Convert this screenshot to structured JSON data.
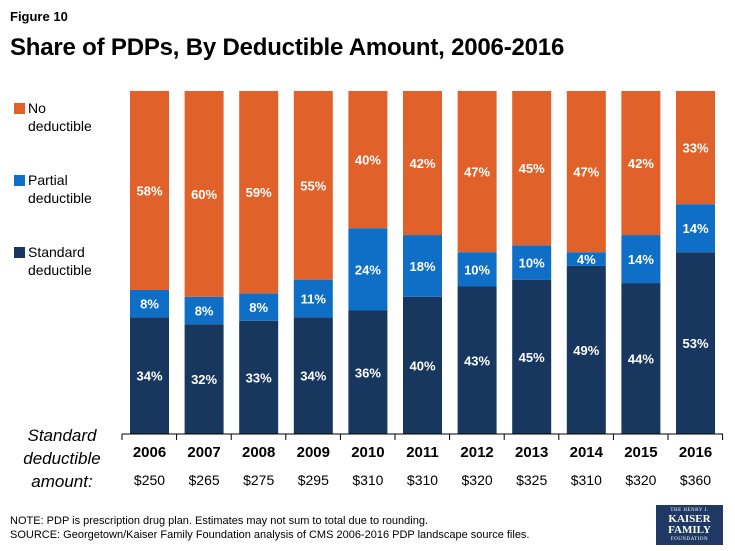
{
  "figure_label": "Figure 10",
  "chart_data": {
    "type": "bar",
    "stacked": true,
    "title": "Share of PDPs, By Deductible Amount, 2006-2016",
    "categories": [
      "2006",
      "2007",
      "2008",
      "2009",
      "2010",
      "2011",
      "2012",
      "2013",
      "2014",
      "2015",
      "2016"
    ],
    "ylim": [
      0,
      100
    ],
    "series": [
      {
        "name": "Standard deductible",
        "color": "#17375e",
        "values": [
          34,
          32,
          33,
          34,
          36,
          40,
          43,
          45,
          49,
          44,
          53
        ],
        "labels": [
          "34%",
          "32%",
          "33%",
          "34%",
          "36%",
          "40%",
          "43%",
          "45%",
          "49%",
          "44%",
          "53%"
        ]
      },
      {
        "name": "Partial deductible",
        "color": "#0f6fc6",
        "values": [
          8,
          8,
          8,
          11,
          24,
          18,
          10,
          10,
          4,
          14,
          14
        ],
        "labels": [
          "8%",
          "8%",
          "8%",
          "11%",
          "24%",
          "18%",
          "10%",
          "10%",
          "4%",
          "14%",
          "14%"
        ]
      },
      {
        "name": "No deductible",
        "color": "#e0622a",
        "values": [
          58,
          60,
          59,
          55,
          40,
          42,
          47,
          45,
          47,
          42,
          33
        ],
        "labels": [
          "58%",
          "60%",
          "59%",
          "55%",
          "40%",
          "42%",
          "47%",
          "45%",
          "47%",
          "42%",
          "33%"
        ]
      }
    ],
    "legend": [
      {
        "line1": "No",
        "line2": "deductible",
        "color": "#e0622a"
      },
      {
        "line1": "Partial",
        "line2": "deductible",
        "color": "#0f6fc6"
      },
      {
        "line1": "Standard",
        "line2": "deductible",
        "color": "#17375e"
      }
    ],
    "legend_position": "left",
    "standard_deductible_amounts": [
      "$250",
      "$265",
      "$275",
      "$295",
      "$310",
      "$310",
      "$320",
      "$325",
      "$310",
      "$320",
      "$360"
    ]
  },
  "row_label": {
    "line1": "Standard",
    "line2": "deductible",
    "line3": "amount:"
  },
  "notes": {
    "note": "NOTE: PDP is prescription drug plan. Estimates may not sum to total due to rounding.",
    "source": "SOURCE: Georgetown/Kaiser Family Foundation analysis of CMS 2006-2016 PDP landscape source files."
  },
  "logo": {
    "line1": "THE HENRY J.",
    "line2": "KAISER",
    "line3": "FAMILY",
    "line4": "FOUNDATION"
  }
}
